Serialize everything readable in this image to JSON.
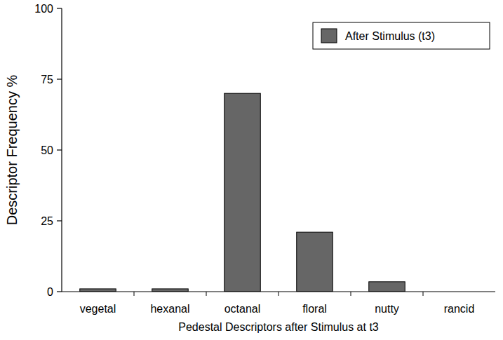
{
  "chart_data": {
    "type": "bar",
    "x_label": "Pedestal Descriptors after Stimulus at t3",
    "y_label": "Descriptor Frequency %",
    "categories": [
      "vegetal",
      "hexanal",
      "octanal",
      "floral",
      "nutty",
      "rancid"
    ],
    "series": [
      {
        "name": "After Stimulus (t3)",
        "color": "#666666",
        "values": [
          1,
          1,
          70,
          21,
          3.5,
          0
        ]
      }
    ],
    "ylim": [
      0,
      100
    ],
    "yticks": [
      0,
      25,
      50,
      75,
      100
    ],
    "grid": false,
    "legend": "upper right"
  }
}
